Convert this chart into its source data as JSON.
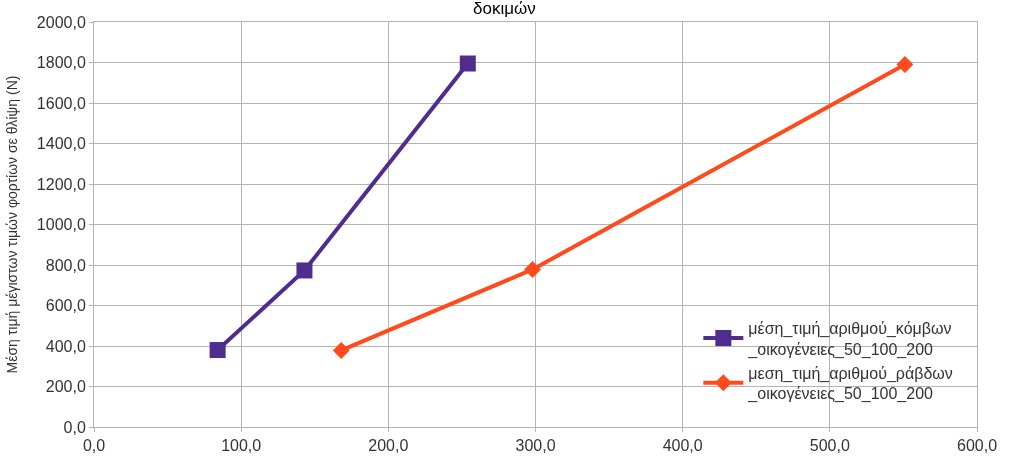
{
  "chart_data": {
    "type": "line",
    "title": "δοκιμών",
    "ylabel": "Μέση τιμή μέγιστων τιμών φορτίων σε θλίψη (N)",
    "series": [
      {
        "name": "μέση_τιμή_αριθμού_κόμβων _οικογένειες_50_100_200",
        "color": "#4f2d8f",
        "marker": "square",
        "x": [
          84,
          143,
          254
        ],
        "values": [
          380,
          773,
          1795
        ]
      },
      {
        "name": "μεση_τιμή_αριθμού_ράβδων _οικογένειες_50_100_200",
        "color": "#ff4a1c",
        "marker": "diamond",
        "x": [
          168,
          298,
          551
        ],
        "values": [
          378,
          778,
          1790
        ]
      }
    ],
    "xlim": [
      0,
      600
    ],
    "xticks": [
      {
        "value": 0,
        "label": "0,0"
      },
      {
        "value": 100,
        "label": "100,0"
      },
      {
        "value": 200,
        "label": "200,0"
      },
      {
        "value": 300,
        "label": "300,0"
      },
      {
        "value": 400,
        "label": "400,0"
      },
      {
        "value": 500,
        "label": "500,0"
      },
      {
        "value": 600,
        "label": "600,0"
      }
    ],
    "ylim": [
      0,
      2000
    ],
    "yticks": [
      {
        "value": 0,
        "label": "0,0"
      },
      {
        "value": 200,
        "label": "200,0"
      },
      {
        "value": 400,
        "label": "400,0"
      },
      {
        "value": 600,
        "label": "600,0"
      },
      {
        "value": 800,
        "label": "800,0"
      },
      {
        "value": 1000,
        "label": "1000,0"
      },
      {
        "value": 1200,
        "label": "1200,0"
      },
      {
        "value": 1400,
        "label": "1400,0"
      },
      {
        "value": 1600,
        "label": "1600,0"
      },
      {
        "value": 1800,
        "label": "1800,0"
      },
      {
        "value": 2000,
        "label": "2000,0"
      }
    ],
    "grid": true,
    "legend": "bottom right",
    "line_style": "solid"
  }
}
